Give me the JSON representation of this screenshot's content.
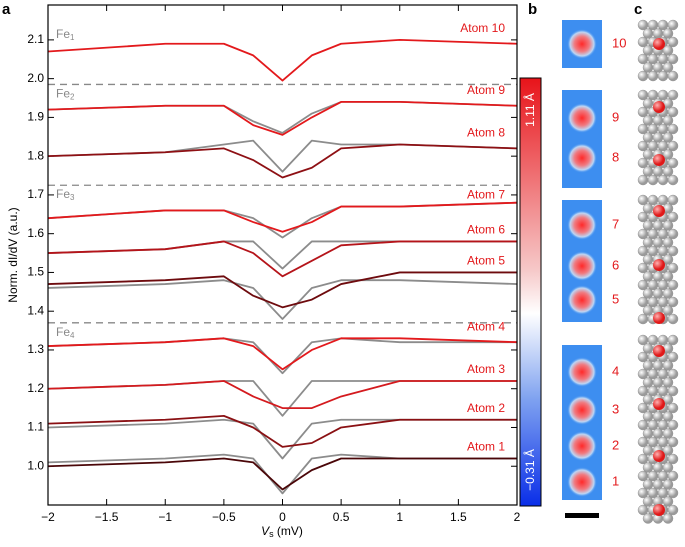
{
  "chart_data": {
    "type": "line",
    "ylabel": "Norm. dI/dV (a.u.)",
    "xlabel": {
      "main": "V",
      "sub": "s",
      "rest": " (mV)"
    },
    "x": [
      -2,
      -1,
      -0.5,
      -0.25,
      0,
      0.25,
      0.5,
      1,
      2
    ],
    "xlim": [
      -2,
      2
    ],
    "xticks": [
      {
        "value": -2,
        "label": "−2"
      },
      {
        "value": -1.5,
        "label": "−1.5"
      },
      {
        "value": -1,
        "label": "−1"
      },
      {
        "value": -0.5,
        "label": "−0.5"
      },
      0,
      0.5,
      1,
      1.5,
      2
    ],
    "ylim": [
      0.9,
      2.19
    ],
    "yticks": [
      {
        "value": 1,
        "label": "1.0"
      },
      1.1,
      1.2,
      1.3,
      1.4,
      1.5,
      1.6,
      1.7,
      1.8,
      1.9,
      {
        "value": 2,
        "label": "2.0"
      },
      2.1
    ],
    "separators": [
      1.985,
      1.725,
      1.37
    ],
    "group_labels": [
      {
        "text": "Fe",
        "sub": "1"
      },
      {
        "text": "Fe",
        "sub": "2"
      },
      {
        "text": "Fe",
        "sub": "3"
      },
      {
        "text": "Fe",
        "sub": "4"
      }
    ],
    "series": [
      {
        "name": "Atom 10",
        "color": "#e3191c",
        "values": [
          2.07,
          2.09,
          2.09,
          2.06,
          1.995,
          2.06,
          2.09,
          2.1,
          2.09
        ]
      },
      {
        "color": "#8c8c8c",
        "values": [
          1.92,
          1.93,
          1.93,
          1.89,
          1.86,
          1.91,
          1.94,
          1.94,
          1.93
        ]
      },
      {
        "name": "Atom 9",
        "color": "#e3191c",
        "values": [
          1.92,
          1.93,
          1.93,
          1.88,
          1.855,
          1.9,
          1.94,
          1.94,
          1.93
        ]
      },
      {
        "color": "#8c8c8c",
        "values": [
          1.8,
          1.81,
          1.83,
          1.84,
          1.76,
          1.84,
          1.83,
          1.83,
          1.82
        ]
      },
      {
        "name": "Atom 8",
        "color": "#8e1014",
        "values": [
          1.8,
          1.81,
          1.82,
          1.79,
          1.745,
          1.77,
          1.82,
          1.83,
          1.82
        ]
      },
      {
        "color": "#8c8c8c",
        "values": [
          1.64,
          1.66,
          1.66,
          1.64,
          1.59,
          1.64,
          1.67,
          1.67,
          1.68
        ]
      },
      {
        "name": "Atom 7",
        "color": "#e3191c",
        "values": [
          1.64,
          1.66,
          1.66,
          1.63,
          1.605,
          1.63,
          1.67,
          1.67,
          1.68
        ]
      },
      {
        "color": "#8c8c8c",
        "values": [
          1.55,
          1.56,
          1.58,
          1.58,
          1.51,
          1.58,
          1.58,
          1.58,
          1.58
        ]
      },
      {
        "name": "Atom 6",
        "color": "#b5141a",
        "values": [
          1.55,
          1.56,
          1.58,
          1.55,
          1.49,
          1.53,
          1.57,
          1.58,
          1.58
        ]
      },
      {
        "color": "#8c8c8c",
        "values": [
          1.46,
          1.47,
          1.48,
          1.46,
          1.38,
          1.46,
          1.48,
          1.48,
          1.47
        ]
      },
      {
        "name": "Atom 5",
        "color": "#6e0b0e",
        "values": [
          1.47,
          1.48,
          1.49,
          1.44,
          1.41,
          1.43,
          1.47,
          1.5,
          1.5
        ]
      },
      {
        "color": "#8c8c8c",
        "values": [
          1.31,
          1.32,
          1.33,
          1.32,
          1.24,
          1.32,
          1.33,
          1.32,
          1.32
        ]
      },
      {
        "name": "Atom 4",
        "color": "#e3191c",
        "values": [
          1.31,
          1.32,
          1.33,
          1.31,
          1.25,
          1.3,
          1.33,
          1.33,
          1.32
        ]
      },
      {
        "color": "#8c8c8c",
        "values": [
          1.2,
          1.21,
          1.22,
          1.22,
          1.13,
          1.22,
          1.22,
          1.22,
          1.22
        ]
      },
      {
        "name": "Atom 3",
        "color": "#d41a1e",
        "values": [
          1.2,
          1.21,
          1.22,
          1.18,
          1.15,
          1.15,
          1.18,
          1.22,
          1.22
        ]
      },
      {
        "color": "#8c8c8c",
        "values": [
          1.1,
          1.11,
          1.12,
          1.11,
          1.02,
          1.11,
          1.12,
          1.12,
          1.12
        ]
      },
      {
        "name": "Atom 2",
        "color": "#8a1013",
        "values": [
          1.11,
          1.12,
          1.13,
          1.1,
          1.05,
          1.06,
          1.1,
          1.12,
          1.12
        ]
      },
      {
        "color": "#8c8c8c",
        "values": [
          1.01,
          1.02,
          1.03,
          1.02,
          0.93,
          1.02,
          1.03,
          1.02,
          1.02
        ]
      },
      {
        "name": "Atom 1",
        "color": "#4a0608",
        "values": [
          1.0,
          1.01,
          1.02,
          1.01,
          0.94,
          0.99,
          1.02,
          1.02,
          1.02
        ]
      }
    ]
  },
  "panel_labels": [
    "a",
    "b",
    "c"
  ],
  "panel_b": {
    "colorbar_max_label": "1.11 Å",
    "colorbar_min_label": "−0.31 Å",
    "atom_numbers": [
      "10",
      "9",
      "8",
      "7",
      "6",
      "5",
      "4",
      "3",
      "2",
      "1"
    ]
  }
}
